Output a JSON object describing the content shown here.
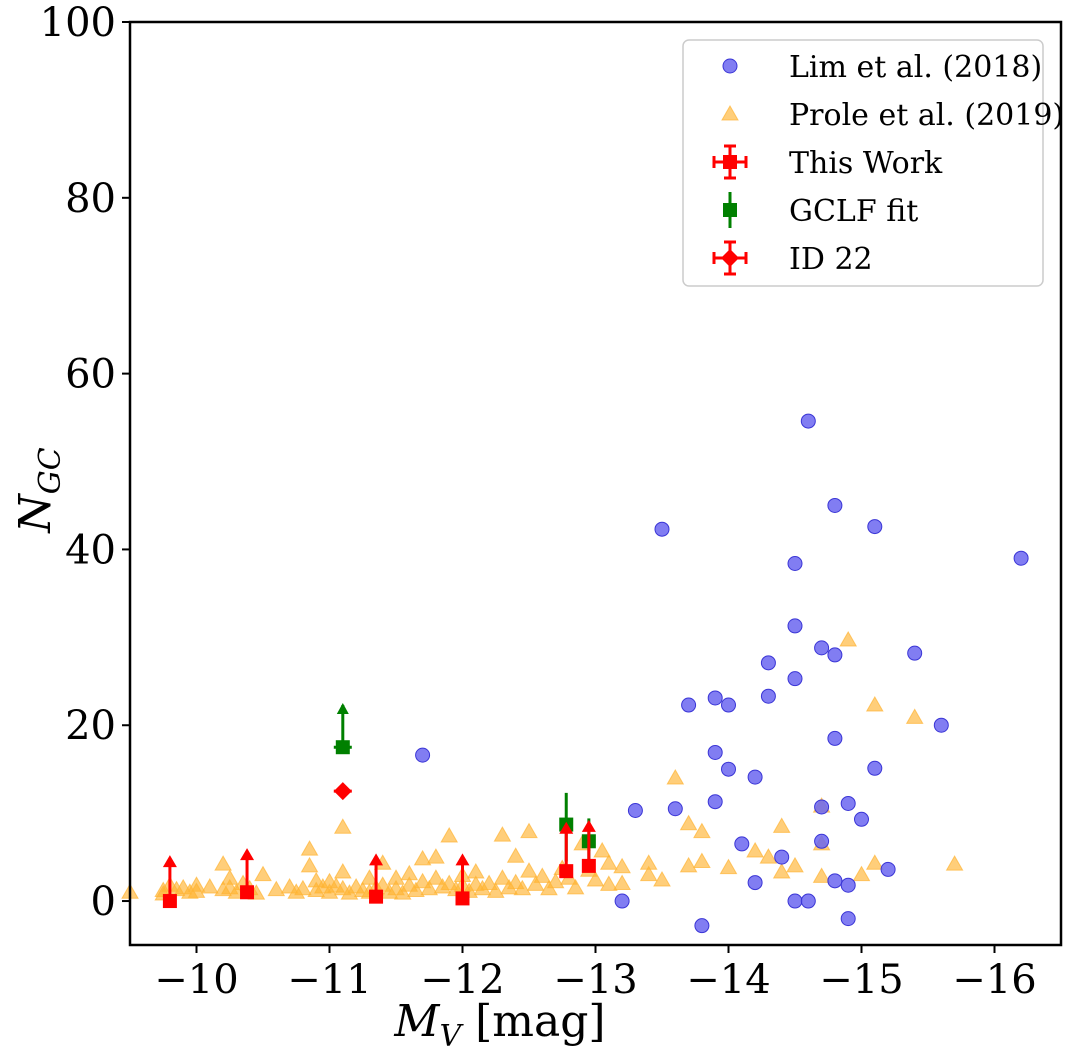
{
  "chart_data": {
    "type": "scatter",
    "title": "",
    "xlabel": "M_V [mag]",
    "ylabel": "N_GC",
    "xlabel_main": "M",
    "xlabel_sub": "V",
    "xlabel_unit": " [mag]",
    "ylabel_main": "N",
    "ylabel_sub": "GC",
    "xlim": [
      -9.5,
      -16.5
    ],
    "ylim": [
      -5,
      100
    ],
    "x_ticks": [
      -10,
      -11,
      -12,
      -13,
      -14,
      -15,
      -16
    ],
    "x_tick_labels": [
      "−10",
      "−11",
      "−12",
      "−13",
      "−14",
      "−15",
      "−16"
    ],
    "y_ticks": [
      0,
      20,
      40,
      60,
      80,
      100
    ],
    "y_tick_labels": [
      "0",
      "20",
      "40",
      "60",
      "80",
      "100"
    ],
    "grid": false,
    "legend_position": "top-right",
    "colors": {
      "lim": "#6b66f0",
      "prole": "#ffb433",
      "this_work": "#ff0000",
      "gclf": "#008000",
      "id22": "#ff0000"
    },
    "series": [
      {
        "name": "Lim et al. (2018)",
        "marker": "circle",
        "points": [
          [
            -11.7,
            16.6
          ],
          [
            -13.3,
            10.3
          ],
          [
            -13.2,
            0
          ],
          [
            -13.5,
            42.3
          ],
          [
            -13.6,
            10.5
          ],
          [
            -13.7,
            22.3
          ],
          [
            -13.8,
            -2.8
          ],
          [
            -13.9,
            23.1
          ],
          [
            -13.9,
            16.9
          ],
          [
            -13.9,
            11.3
          ],
          [
            -14.0,
            22.3
          ],
          [
            -14.0,
            15.0
          ],
          [
            -14.1,
            6.5
          ],
          [
            -14.2,
            14.1
          ],
          [
            -14.2,
            2.1
          ],
          [
            -14.3,
            27.1
          ],
          [
            -14.3,
            23.3
          ],
          [
            -14.4,
            5.0
          ],
          [
            -14.5,
            38.4
          ],
          [
            -14.5,
            31.3
          ],
          [
            -14.5,
            25.3
          ],
          [
            -14.5,
            0
          ],
          [
            -14.6,
            54.6
          ],
          [
            -14.6,
            0
          ],
          [
            -14.7,
            28.8
          ],
          [
            -14.7,
            10.7
          ],
          [
            -14.7,
            6.8
          ],
          [
            -14.8,
            45.0
          ],
          [
            -14.8,
            28.0
          ],
          [
            -14.8,
            18.5
          ],
          [
            -14.8,
            2.3
          ],
          [
            -14.9,
            11.1
          ],
          [
            -14.9,
            1.8
          ],
          [
            -14.9,
            -2.0
          ],
          [
            -15.0,
            9.3
          ],
          [
            -15.1,
            42.6
          ],
          [
            -15.1,
            15.1
          ],
          [
            -15.2,
            3.6
          ],
          [
            -15.4,
            28.2
          ],
          [
            -15.6,
            20.0
          ],
          [
            -16.2,
            39.0
          ]
        ]
      },
      {
        "name": "Prole et al. (2019)",
        "marker": "triangle",
        "points": [
          [
            -9.5,
            1.0
          ],
          [
            -9.75,
            1.2
          ],
          [
            -9.75,
            0.8
          ],
          [
            -9.8,
            1.8
          ],
          [
            -9.85,
            1.3
          ],
          [
            -9.9,
            1.5
          ],
          [
            -9.95,
            1.0
          ],
          [
            -10.0,
            1.8
          ],
          [
            -10.0,
            1.1
          ],
          [
            -10.1,
            1.6
          ],
          [
            -10.2,
            1.3
          ],
          [
            -10.2,
            4.2
          ],
          [
            -10.25,
            2.6
          ],
          [
            -10.25,
            1.5
          ],
          [
            -10.3,
            1.0
          ],
          [
            -10.35,
            2.0
          ],
          [
            -10.4,
            1.4
          ],
          [
            -10.45,
            0.9
          ],
          [
            -10.5,
            3.0
          ],
          [
            -10.6,
            1.3
          ],
          [
            -10.7,
            1.6
          ],
          [
            -10.75,
            1.0
          ],
          [
            -10.8,
            1.4
          ],
          [
            -10.85,
            5.9
          ],
          [
            -10.85,
            4.0
          ],
          [
            -10.9,
            2.3
          ],
          [
            -10.9,
            1.2
          ],
          [
            -10.95,
            1.6
          ],
          [
            -11.0,
            2.2
          ],
          [
            -11.0,
            1.0
          ],
          [
            -11.05,
            1.7
          ],
          [
            -11.1,
            8.4
          ],
          [
            -11.1,
            3.3
          ],
          [
            -11.1,
            1.4
          ],
          [
            -11.15,
            0.9
          ],
          [
            -11.2,
            1.6
          ],
          [
            -11.25,
            1.2
          ],
          [
            -11.3,
            2.6
          ],
          [
            -11.3,
            1.0
          ],
          [
            -11.35,
            1.5
          ],
          [
            -11.4,
            4.3
          ],
          [
            -11.4,
            1.8
          ],
          [
            -11.45,
            1.0
          ],
          [
            -11.5,
            2.6
          ],
          [
            -11.5,
            1.4
          ],
          [
            -11.55,
            0.9
          ],
          [
            -11.6,
            3.1
          ],
          [
            -11.6,
            1.8
          ],
          [
            -11.65,
            1.2
          ],
          [
            -11.7,
            4.8
          ],
          [
            -11.7,
            2.2
          ],
          [
            -11.75,
            1.4
          ],
          [
            -11.8,
            5.0
          ],
          [
            -11.8,
            2.6
          ],
          [
            -11.85,
            1.6
          ],
          [
            -11.9,
            7.4
          ],
          [
            -11.9,
            2.0
          ],
          [
            -11.95,
            1.3
          ],
          [
            -12.0,
            2.9
          ],
          [
            -12.0,
            1.8
          ],
          [
            -12.05,
            1.1
          ],
          [
            -12.1,
            3.3
          ],
          [
            -12.1,
            1.9
          ],
          [
            -12.15,
            1.4
          ],
          [
            -12.2,
            2.0
          ],
          [
            -12.25,
            1.1
          ],
          [
            -12.3,
            7.5
          ],
          [
            -12.3,
            2.6
          ],
          [
            -12.35,
            1.5
          ],
          [
            -12.4,
            5.1
          ],
          [
            -12.4,
            2.1
          ],
          [
            -12.45,
            1.4
          ],
          [
            -12.5,
            7.9
          ],
          [
            -12.5,
            3.4
          ],
          [
            -12.55,
            1.9
          ],
          [
            -12.6,
            2.8
          ],
          [
            -12.65,
            1.4
          ],
          [
            -12.7,
            2.2
          ],
          [
            -12.75,
            3.7
          ],
          [
            -12.8,
            2.6
          ],
          [
            -12.85,
            1.5
          ],
          [
            -12.9,
            6.5
          ],
          [
            -12.95,
            3.5
          ],
          [
            -13.0,
            2.4
          ],
          [
            -13.05,
            5.7
          ],
          [
            -13.1,
            4.3
          ],
          [
            -13.1,
            1.9
          ],
          [
            -13.2,
            3.9
          ],
          [
            -13.2,
            2.0
          ],
          [
            -13.4,
            4.3
          ],
          [
            -13.4,
            3.0
          ],
          [
            -13.5,
            2.4
          ],
          [
            -13.6,
            14.0
          ],
          [
            -13.7,
            8.8
          ],
          [
            -13.7,
            4.0
          ],
          [
            -13.8,
            7.9
          ],
          [
            -13.8,
            4.5
          ],
          [
            -14.0,
            3.8
          ],
          [
            -14.2,
            5.7
          ],
          [
            -14.3,
            5.0
          ],
          [
            -14.4,
            8.5
          ],
          [
            -14.4,
            3.3
          ],
          [
            -14.5,
            4.0
          ],
          [
            -14.7,
            10.8
          ],
          [
            -14.7,
            6.5
          ],
          [
            -14.7,
            2.8
          ],
          [
            -14.9,
            29.7
          ],
          [
            -15.0,
            3.0
          ],
          [
            -15.1,
            22.3
          ],
          [
            -15.1,
            4.3
          ],
          [
            -15.4,
            20.9
          ],
          [
            -15.7,
            4.2
          ]
        ]
      },
      {
        "name": "This Work",
        "marker": "square",
        "points": [
          {
            "x": -9.8,
            "y": 0,
            "upper_limit_to": 5.0
          },
          {
            "x": -10.38,
            "y": 1,
            "upper_limit_to": 5.8
          },
          {
            "x": -11.35,
            "y": 0.5,
            "upper_limit_to": 5.2
          },
          {
            "x": -12.0,
            "y": 0.3,
            "upper_limit_to": 5.2
          },
          {
            "x": -12.78,
            "y": 3.4,
            "upper_limit_to": 8.8
          },
          {
            "x": -12.95,
            "y": 4.0,
            "upper_limit_to": 9.0
          }
        ]
      },
      {
        "name": "GCLF fit",
        "marker": "square",
        "points": [
          {
            "x": -11.1,
            "y": 17.5,
            "yerr_low": 17.5,
            "yerr_high": 22.3
          },
          {
            "x": -12.78,
            "y": 8.7,
            "yerr_low": 4.5,
            "yerr_high": 12.3
          },
          {
            "x": -12.95,
            "y": 6.8,
            "yerr_low": 4.2,
            "yerr_high": 9.4
          }
        ]
      },
      {
        "name": "ID 22",
        "marker": "diamond",
        "points": [
          {
            "x": -11.1,
            "y": 12.5
          }
        ]
      }
    ]
  }
}
